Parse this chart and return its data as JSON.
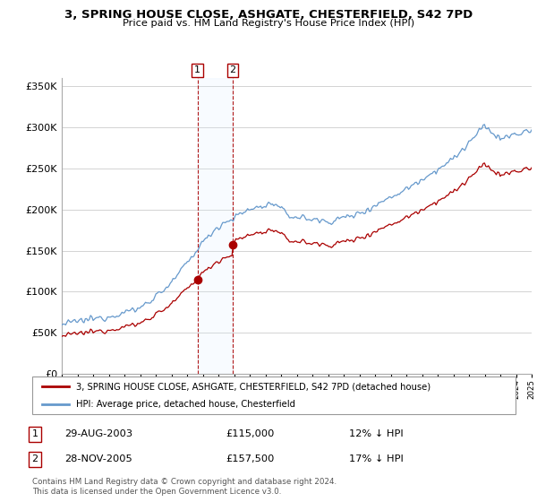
{
  "title": "3, SPRING HOUSE CLOSE, ASHGATE, CHESTERFIELD, S42 7PD",
  "subtitle": "Price paid vs. HM Land Registry's House Price Index (HPI)",
  "ylim": [
    0,
    360000
  ],
  "yticks": [
    0,
    50000,
    100000,
    150000,
    200000,
    250000,
    300000,
    350000
  ],
  "sale1_year": 2003.66,
  "sale1_price": 115000,
  "sale2_year": 2005.91,
  "sale2_price": 157500,
  "legend_line1": "3, SPRING HOUSE CLOSE, ASHGATE, CHESTERFIELD, S42 7PD (detached house)",
  "legend_line2": "HPI: Average price, detached house, Chesterfield",
  "footer": "Contains HM Land Registry data © Crown copyright and database right 2024.\nThis data is licensed under the Open Government Licence v3.0.",
  "red_color": "#aa0000",
  "blue_color": "#6699cc",
  "shade_color": "#ddeeff",
  "grid_color": "#cccccc"
}
